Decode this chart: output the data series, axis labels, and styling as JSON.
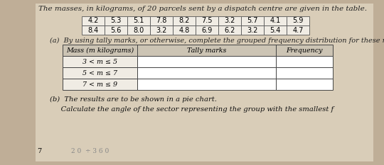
{
  "title": "The masses, in kilograms, of 20 parcels sent by a dispatch centre are given in the table.",
  "data_row1": [
    "4.2",
    "5.3",
    "5.1",
    "7.8",
    "8.2",
    "7.5",
    "3.2",
    "5.7",
    "4.1",
    "5.9"
  ],
  "data_row2": [
    "8.4",
    "5.6",
    "8.0",
    "3.2",
    "4.8",
    "6.9",
    "6.2",
    "3.2",
    "5.4",
    "4.7"
  ],
  "part_a_label": "(a)  By using tally marks, or otherwise, complete the grouped frequency distribution for these masses.",
  "freq_headers": [
    "Mass (m kilograms)",
    "Tally marks",
    "Frequency"
  ],
  "freq_rows": [
    "3 < m ≤ 5",
    "5 < m ≤ 7",
    "7 < m ≤ 9"
  ],
  "part_b_line1": "(b)  The results are to be shown in a pie chart.",
  "part_b_line2": "     Calculate the angle of the sector representing the group with the smallest f",
  "bottom_left": "7",
  "bottom_note": "2 0  ÷ 3 6 0",
  "bg_color": "#bfae97",
  "page_color": "#d9cdb8",
  "table_white": "#f0ece4",
  "header_gray": "#ccc4b4"
}
